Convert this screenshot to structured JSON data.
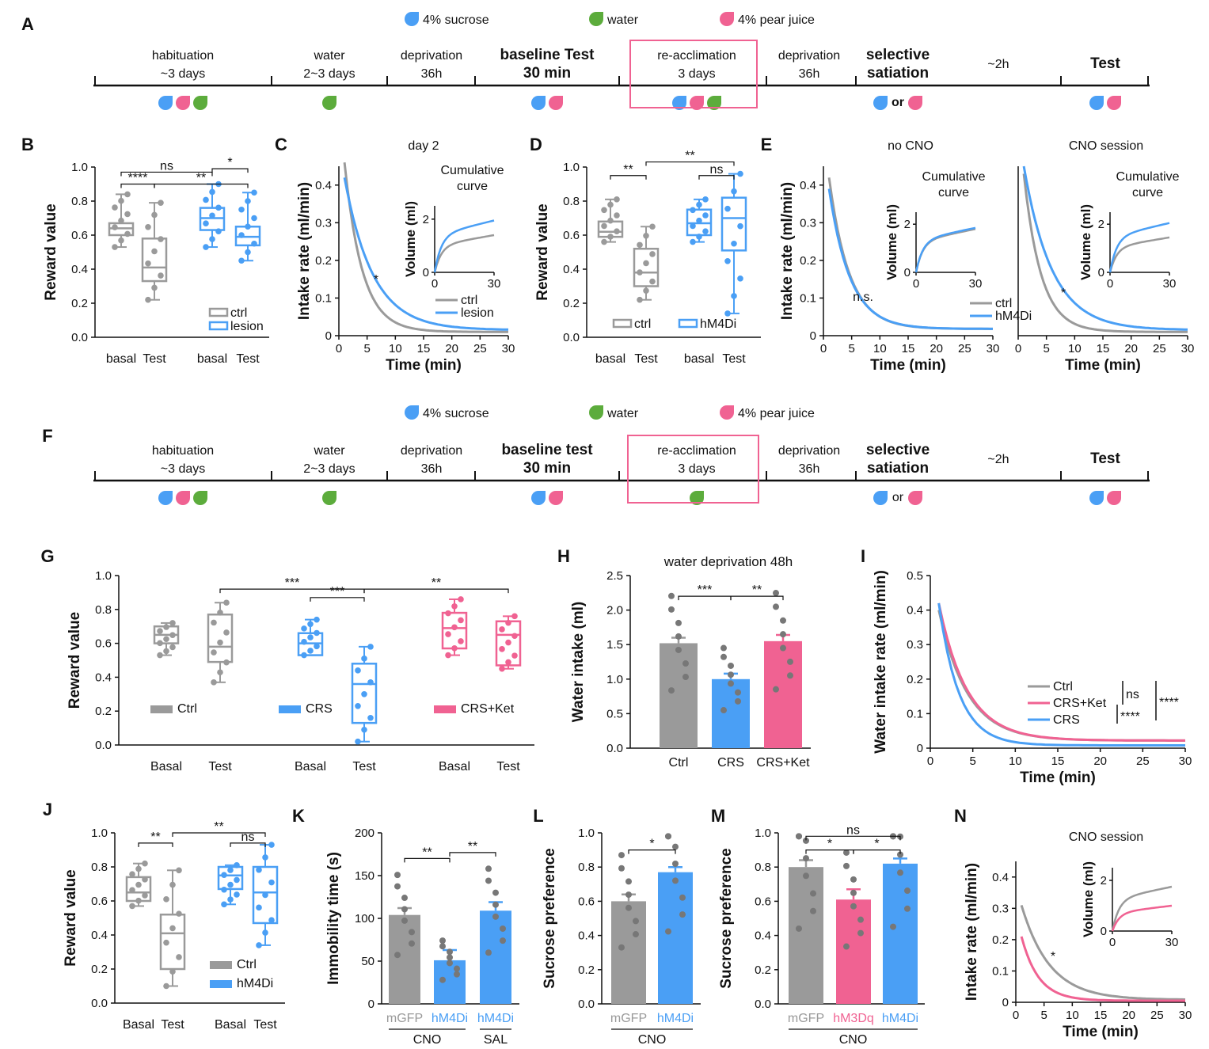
{
  "panel_letters": [
    "A",
    "B",
    "C",
    "D",
    "E",
    "F",
    "G",
    "H",
    "I",
    "J",
    "K",
    "L",
    "M",
    "N"
  ],
  "legend_top": [
    {
      "label": "4% sucrose",
      "color": "#4a9ff5"
    },
    {
      "label": "water",
      "color": "#5cac3c"
    },
    {
      "label": "4% pear juice",
      "color": "#f06292"
    }
  ],
  "colors": {
    "gray": "#9a9a9a",
    "blue": "#4a9ff5",
    "pink": "#f06292",
    "green": "#5cac3c",
    "dark": "#111111"
  },
  "timeline_A": {
    "phases": [
      {
        "line1": "habituation",
        "line2": "~3 days",
        "bold": false
      },
      {
        "line1": "water",
        "line2": "2~3 days",
        "bold": false
      },
      {
        "line1": "deprivation",
        "line2": "36h",
        "bold": false
      },
      {
        "line1": "baseline Test",
        "line2": "30 min",
        "bold": true
      },
      {
        "line1": "re-acclimation",
        "line2": "3 days",
        "bold": false
      },
      {
        "line1": "deprivation",
        "line2": "36h",
        "bold": false
      },
      {
        "line1": "selective",
        "line2": "satiation",
        "bold": true
      },
      {
        "line1": "~2h",
        "line2": "",
        "bold": false
      },
      {
        "line1": "Test",
        "line2": "",
        "bold": true
      }
    ],
    "drops": [
      [
        "blue",
        "pink",
        "green"
      ],
      [
        "green"
      ],
      [],
      [
        "blue",
        "pink"
      ],
      [
        "blue",
        "pink",
        "green"
      ],
      [],
      [
        "blue",
        "or",
        "pink"
      ],
      [],
      [
        "blue",
        "pink"
      ]
    ]
  },
  "timeline_F": {
    "phases": [
      {
        "line1": "habituation",
        "line2": "~3 days",
        "bold": false
      },
      {
        "line1": "water",
        "line2": "2~3 days",
        "bold": false
      },
      {
        "line1": "deprivation",
        "line2": "36h",
        "bold": false
      },
      {
        "line1": "baseline test",
        "line2": "30 min",
        "bold": true
      },
      {
        "line1": "re-acclimation",
        "line2": "3 days",
        "bold": false
      },
      {
        "line1": "deprivation",
        "line2": "36h",
        "bold": false
      },
      {
        "line1": "selective",
        "line2": "satiation",
        "bold": true
      },
      {
        "line1": "~2h",
        "line2": "",
        "bold": false
      },
      {
        "line1": "Test",
        "line2": "",
        "bold": true
      }
    ],
    "drops": [
      [
        "blue",
        "pink",
        "green"
      ],
      [
        "green"
      ],
      [],
      [
        "blue",
        "pink"
      ],
      [
        "green"
      ],
      [],
      [
        "blue",
        "or",
        "pink"
      ],
      [],
      [
        "blue",
        "pink"
      ]
    ]
  },
  "or_text": "or",
  "chart_data": [
    {
      "id": "B",
      "type": "box",
      "ylabel": "Reward value",
      "ylim": [
        0,
        1
      ],
      "yticks": [
        "0.0",
        "0.2",
        "0.4",
        "0.6",
        "0.8",
        "1.0"
      ],
      "categories": [
        "basal",
        "Test",
        "basal",
        "Test"
      ],
      "groups": [
        {
          "name": "ctrl",
          "color": "gray",
          "q1": 0.6,
          "median": 0.64,
          "q3": 0.67,
          "min": 0.53,
          "max": 0.84
        },
        {
          "name": "ctrl",
          "color": "gray",
          "q1": 0.33,
          "median": 0.41,
          "q3": 0.58,
          "min": 0.22,
          "max": 0.79
        },
        {
          "name": "lesion",
          "color": "blue",
          "q1": 0.63,
          "median": 0.7,
          "q3": 0.76,
          "min": 0.53,
          "max": 0.9
        },
        {
          "name": "lesion",
          "color": "blue",
          "q1": 0.54,
          "median": 0.59,
          "q3": 0.65,
          "min": 0.45,
          "max": 0.85
        }
      ],
      "legend": [
        "ctrl",
        "lesion"
      ],
      "sig": [
        {
          "text": "ns",
          "from": 0,
          "to": 2,
          "level": 0.97
        },
        {
          "text": "*",
          "from": 2,
          "to": 3,
          "level": 0.99
        },
        {
          "text": "****",
          "from": 0,
          "to": 1,
          "level": 0.9
        },
        {
          "text": "**",
          "from": 1,
          "to": 3,
          "level": 0.9
        }
      ]
    },
    {
      "id": "C",
      "type": "line",
      "title": "day 2",
      "xlabel": "Time (min)",
      "ylabel": "Intake rate (ml/min)",
      "xlim": [
        0,
        30
      ],
      "ylim": [
        0,
        0.45
      ],
      "xticks": [
        "0",
        "5",
        "10",
        "15",
        "20",
        "25",
        "30"
      ],
      "yticks": [
        "0",
        "0.1",
        "0.2",
        "0.3",
        "0.4"
      ],
      "series": [
        {
          "name": "ctrl",
          "color": "gray",
          "a": 0.46,
          "k": 0.32,
          "c": 0.01
        },
        {
          "name": "lesion",
          "color": "blue",
          "a": 0.42,
          "k": 0.2,
          "c": 0.015
        }
      ],
      "annotation": "*",
      "inset": {
        "title": "Cumulative curve",
        "ylabel": "Volume (ml)",
        "yticks": [
          "0",
          "2"
        ],
        "xticks": [
          "0",
          "30"
        ],
        "series": [
          {
            "color": "gray",
            "end": 1.4
          },
          {
            "color": "blue",
            "end": 1.95
          }
        ]
      }
    },
    {
      "id": "D",
      "type": "box",
      "ylabel": "Reward value",
      "ylim": [
        0,
        1
      ],
      "yticks": [
        "0.0",
        "0.2",
        "0.4",
        "0.6",
        "0.8",
        "1.0"
      ],
      "categories": [
        "basal",
        "Test",
        "basal",
        "Test"
      ],
      "groups": [
        {
          "name": "ctrl",
          "color": "gray",
          "q1": 0.59,
          "median": 0.62,
          "q3": 0.68,
          "min": 0.56,
          "max": 0.81
        },
        {
          "name": "ctrl",
          "color": "gray",
          "q1": 0.3,
          "median": 0.38,
          "q3": 0.52,
          "min": 0.22,
          "max": 0.65
        },
        {
          "name": "hM4Di",
          "color": "blue",
          "q1": 0.6,
          "median": 0.67,
          "q3": 0.75,
          "min": 0.56,
          "max": 0.81
        },
        {
          "name": "hM4Di",
          "color": "blue",
          "q1": 0.51,
          "median": 0.7,
          "q3": 0.82,
          "min": 0.14,
          "max": 0.96
        }
      ],
      "legend": [
        "ctrl",
        "hM4Di"
      ],
      "sig": [
        {
          "text": "**",
          "from": 0,
          "to": 1,
          "level": 0.95
        },
        {
          "text": "ns",
          "from": 2,
          "to": 3,
          "level": 0.95
        },
        {
          "text": "**",
          "from": 1,
          "to": 3,
          "level": 1.03
        }
      ]
    },
    {
      "id": "E1",
      "type": "line",
      "title": "no CNO",
      "xlabel": "Time (min)",
      "ylabel": "Intake rate (ml/min)",
      "xlim": [
        0,
        30
      ],
      "ylim": [
        0,
        0.45
      ],
      "xticks": [
        "0",
        "5",
        "10",
        "15",
        "20",
        "25",
        "30"
      ],
      "yticks": [
        "0",
        "0.1",
        "0.2",
        "0.3",
        "0.4"
      ],
      "series": [
        {
          "name": "ctrl",
          "color": "gray",
          "a": 0.42,
          "k": 0.28,
          "c": 0.018
        },
        {
          "name": "hM4Di",
          "color": "blue",
          "a": 0.39,
          "k": 0.27,
          "c": 0.018
        }
      ],
      "annotation": "n.s.",
      "inset": {
        "title": "Cumulative curve",
        "ylabel": "Volume (ml)",
        "yticks": [
          "0",
          "2"
        ],
        "xticks": [
          "0",
          "30"
        ],
        "series": [
          {
            "color": "gray",
            "end": 1.8
          },
          {
            "color": "blue",
            "end": 1.85
          }
        ]
      }
    },
    {
      "id": "E2",
      "type": "line",
      "title": "CNO session",
      "xlabel": "Time (min)",
      "ylabel": "",
      "xlim": [
        0,
        30
      ],
      "ylim": [
        0,
        0.45
      ],
      "xticks": [
        "0",
        "5",
        "10",
        "15",
        "20",
        "25",
        "30"
      ],
      "yticks": [],
      "series": [
        {
          "name": "ctrl",
          "color": "gray",
          "a": 0.43,
          "k": 0.33,
          "c": 0.01
        },
        {
          "name": "hM4Di",
          "color": "blue",
          "a": 0.45,
          "k": 0.2,
          "c": 0.015
        }
      ],
      "annotation": "*",
      "inset": {
        "title": "Cumulative curve",
        "ylabel": "Volume (ml)",
        "yticks": [
          "0",
          "2"
        ],
        "xticks": [
          "0",
          "30"
        ],
        "series": [
          {
            "color": "gray",
            "end": 1.45
          },
          {
            "color": "blue",
            "end": 2.05
          }
        ]
      }
    },
    {
      "id": "G",
      "type": "box",
      "ylabel": "Reward value",
      "ylim": [
        0,
        1
      ],
      "yticks": [
        "0.0",
        "0.2",
        "0.4",
        "0.6",
        "0.8",
        "1.0"
      ],
      "categories": [
        "Basal",
        "Test",
        "Basal",
        "Test",
        "Basal",
        "Test"
      ],
      "groups": [
        {
          "name": "Ctrl",
          "color": "gray",
          "q1": 0.6,
          "median": 0.65,
          "q3": 0.7,
          "min": 0.53,
          "max": 0.72
        },
        {
          "name": "Ctrl",
          "color": "gray",
          "q1": 0.49,
          "median": 0.58,
          "q3": 0.77,
          "min": 0.37,
          "max": 0.84
        },
        {
          "name": "CRS",
          "color": "blue",
          "q1": 0.53,
          "median": 0.6,
          "q3": 0.66,
          "min": 0.53,
          "max": 0.74
        },
        {
          "name": "CRS",
          "color": "blue",
          "q1": 0.13,
          "median": 0.36,
          "q3": 0.48,
          "min": 0.02,
          "max": 0.58
        },
        {
          "name": "CRS+Ket",
          "color": "pink",
          "q1": 0.57,
          "median": 0.69,
          "q3": 0.78,
          "min": 0.53,
          "max": 0.86
        },
        {
          "name": "CRS+Ket",
          "color": "pink",
          "q1": 0.47,
          "median": 0.65,
          "q3": 0.73,
          "min": 0.45,
          "max": 0.76
        }
      ],
      "legend": [
        "Ctrl",
        "CRS",
        "CRS+Ket"
      ],
      "sig": [
        {
          "text": "***",
          "from": 1,
          "to": 3,
          "level": 0.92
        },
        {
          "text": "***",
          "from": 2,
          "to": 3,
          "level": 0.87
        },
        {
          "text": "**",
          "from": 3,
          "to": 5,
          "level": 0.92
        }
      ]
    },
    {
      "id": "H",
      "type": "bar",
      "title": "water deprivation 48h",
      "ylabel": "Water intake (ml)",
      "ylim": [
        0,
        2.5
      ],
      "yticks": [
        "0.0",
        "0.5",
        "1.0",
        "1.5",
        "2.0",
        "2.5"
      ],
      "categories": [
        "Ctrl",
        "CRS",
        "CRS+Ket"
      ],
      "values": [
        1.52,
        1.0,
        1.55
      ],
      "errors": [
        0.08,
        0.08,
        0.09
      ],
      "colors": [
        "gray",
        "blue",
        "pink"
      ],
      "sig": [
        {
          "text": "***",
          "from": 0,
          "to": 1,
          "level": 2.2
        },
        {
          "text": "**",
          "from": 1,
          "to": 2,
          "level": 2.2
        }
      ]
    },
    {
      "id": "I",
      "type": "line",
      "xlabel": "Time (min)",
      "ylabel": "Water intake rate (ml/min)",
      "xlim": [
        0,
        30
      ],
      "ylim": [
        0,
        0.5
      ],
      "xticks": [
        "0",
        "5",
        "10",
        "15",
        "20",
        "25",
        "30"
      ],
      "yticks": [
        "0",
        "0.1",
        "0.2",
        "0.3",
        "0.4",
        "0.5"
      ],
      "series": [
        {
          "name": "Ctrl",
          "color": "gray",
          "a": 0.4,
          "k": 0.3,
          "c": 0.022
        },
        {
          "name": "CRS+Ket",
          "color": "pink",
          "a": 0.42,
          "k": 0.3,
          "c": 0.022
        },
        {
          "name": "CRS",
          "color": "blue",
          "a": 0.42,
          "k": 0.42,
          "c": 0.008
        }
      ],
      "sig_labels": [
        "ns",
        "****",
        "****"
      ]
    },
    {
      "id": "J",
      "type": "box",
      "ylabel": "Reward value",
      "ylim": [
        0,
        1
      ],
      "yticks": [
        "0.0",
        "0.2",
        "0.4",
        "0.6",
        "0.8",
        "1.0"
      ],
      "categories": [
        "Basal",
        "Test",
        "Basal",
        "Test"
      ],
      "groups": [
        {
          "name": "Ctrl",
          "color": "gray",
          "q1": 0.6,
          "median": 0.65,
          "q3": 0.74,
          "min": 0.57,
          "max": 0.82
        },
        {
          "name": "Ctrl",
          "color": "gray",
          "q1": 0.2,
          "median": 0.41,
          "q3": 0.52,
          "min": 0.1,
          "max": 0.78
        },
        {
          "name": "hM4Di",
          "color": "blue",
          "q1": 0.67,
          "median": 0.75,
          "q3": 0.8,
          "min": 0.58,
          "max": 0.81
        },
        {
          "name": "hM4Di",
          "color": "blue",
          "q1": 0.47,
          "median": 0.65,
          "q3": 0.8,
          "min": 0.34,
          "max": 0.93
        }
      ],
      "legend": [
        "Ctrl",
        "hM4Di"
      ],
      "sig": [
        {
          "text": "**",
          "from": 0,
          "to": 1,
          "level": 0.94
        },
        {
          "text": "ns",
          "from": 2,
          "to": 3,
          "level": 0.94
        },
        {
          "text": "**",
          "from": 1,
          "to": 3,
          "level": 1.0
        }
      ]
    },
    {
      "id": "K",
      "type": "bar",
      "ylabel": "Immobility time (s)",
      "ylim": [
        0,
        200
      ],
      "yticks": [
        "0",
        "50",
        "100",
        "150",
        "200"
      ],
      "categories": [
        "mGFP",
        "hM4Di",
        "hM4Di"
      ],
      "values": [
        104,
        51,
        109
      ],
      "errors": [
        8,
        12,
        10
      ],
      "colors": [
        "gray",
        "blue",
        "blue"
      ],
      "group_labels": [
        {
          "text": "CNO",
          "from": 0,
          "to": 1
        },
        {
          "text": "SAL",
          "from": 2,
          "to": 2
        }
      ],
      "sig": [
        {
          "text": "**",
          "from": 0,
          "to": 1,
          "level": 170
        },
        {
          "text": "**",
          "from": 1,
          "to": 2,
          "level": 177
        }
      ]
    },
    {
      "id": "L",
      "type": "bar",
      "ylabel": "Sucrose preference",
      "ylim": [
        0,
        1
      ],
      "yticks": [
        "0.0",
        "0.2",
        "0.4",
        "0.6",
        "0.8",
        "1.0"
      ],
      "categories": [
        "mGFP",
        "hM4Di"
      ],
      "values": [
        0.6,
        0.77
      ],
      "errors": [
        0.04,
        0.03
      ],
      "colors": [
        "gray",
        "blue"
      ],
      "group_labels": [
        {
          "text": "CNO",
          "from": 0,
          "to": 1
        }
      ],
      "sig": [
        {
          "text": "*",
          "from": 0,
          "to": 1,
          "level": 0.9
        }
      ]
    },
    {
      "id": "M",
      "type": "bar",
      "ylabel": "Sucrose preference",
      "ylim": [
        0,
        1
      ],
      "yticks": [
        "0.0",
        "0.2",
        "0.4",
        "0.6",
        "0.8",
        "1.0"
      ],
      "categories": [
        "mGFP",
        "hM3Dq",
        "hM4Di"
      ],
      "values": [
        0.8,
        0.61,
        0.82
      ],
      "errors": [
        0.04,
        0.06,
        0.03
      ],
      "colors": [
        "gray",
        "pink",
        "blue"
      ],
      "group_labels": [
        {
          "text": "CNO",
          "from": 0,
          "to": 2
        }
      ],
      "sig": [
        {
          "text": "*",
          "from": 0,
          "to": 1,
          "level": 0.9
        },
        {
          "text": "*",
          "from": 1,
          "to": 2,
          "level": 0.9
        },
        {
          "text": "ns",
          "from": 0,
          "to": 2,
          "level": 0.98
        }
      ]
    },
    {
      "id": "N",
      "type": "line",
      "title": "CNO session",
      "xlabel": "Time (min)",
      "ylabel": "Intake rate (ml/min)",
      "xlim": [
        0,
        30
      ],
      "ylim": [
        0,
        0.45
      ],
      "xticks": [
        "0",
        "5",
        "10",
        "15",
        "20",
        "25",
        "30"
      ],
      "yticks": [
        "0",
        "0.1",
        "0.2",
        "0.3",
        "0.4"
      ],
      "series": [
        {
          "name": "gray",
          "color": "gray",
          "a": 0.31,
          "k": 0.2,
          "c": 0.008
        },
        {
          "name": "pink",
          "color": "pink",
          "a": 0.21,
          "k": 0.33,
          "c": 0.005
        }
      ],
      "annotation": "*",
      "inset": {
        "title": "",
        "ylabel": "Volume (ml)",
        "yticks": [
          "0",
          "2"
        ],
        "xticks": [
          "0",
          "30"
        ],
        "series": [
          {
            "color": "gray",
            "end": 1.75
          },
          {
            "color": "pink",
            "end": 1.0
          }
        ]
      }
    }
  ]
}
